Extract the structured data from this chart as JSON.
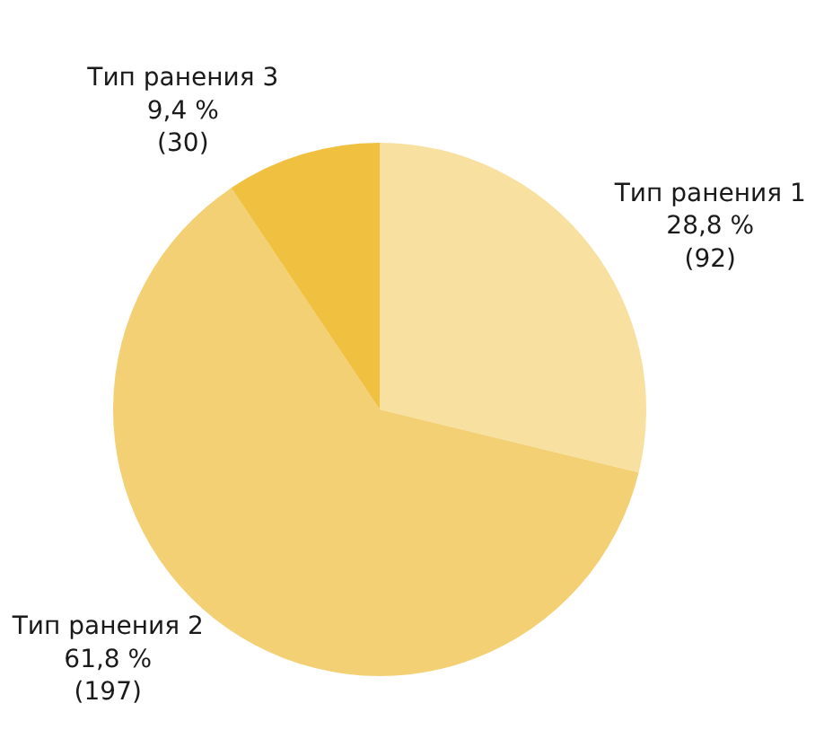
{
  "chart_data": {
    "type": "pie",
    "categories": [
      "Тип ранения 1",
      "Тип ранения 2",
      "Тип ранения 3"
    ],
    "values": [
      28.8,
      61.8,
      9.4
    ],
    "value_labels": [
      "28,8 %\n(92)",
      "61,8 %\n(197)",
      "9,4 %\n(30)"
    ],
    "colors": [
      "#f7e0a0",
      "#f3d073",
      "#f0c040"
    ],
    "legend": false
  }
}
